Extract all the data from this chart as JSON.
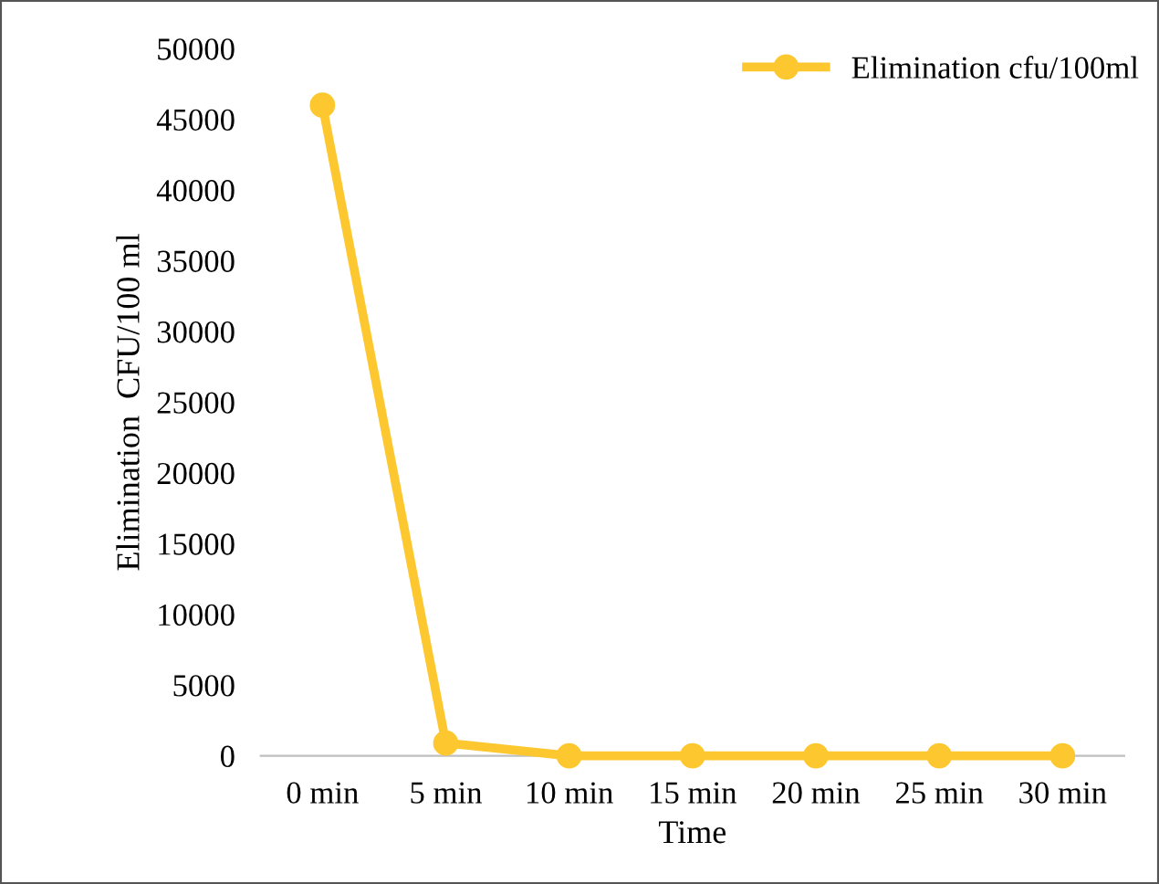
{
  "chart_data": {
    "type": "line",
    "xlabel": "Time",
    "ylabel": "Elimination  CFU/100 ml",
    "categories": [
      "0 min",
      "5 min",
      "10 min",
      "15 min",
      "20 min",
      "25 min",
      "30 min"
    ],
    "series": [
      {
        "name": "Elimination cfu/100ml",
        "color": "#fdc82f",
        "values": [
          46000,
          900,
          0,
          0,
          0,
          0,
          0
        ]
      }
    ],
    "ylim": [
      0,
      50000
    ],
    "yticks": [
      0,
      5000,
      10000,
      15000,
      20000,
      25000,
      30000,
      35000,
      40000,
      45000,
      50000
    ],
    "grid": false,
    "legend": "top right",
    "marker": "circle",
    "line_style": "solid"
  }
}
